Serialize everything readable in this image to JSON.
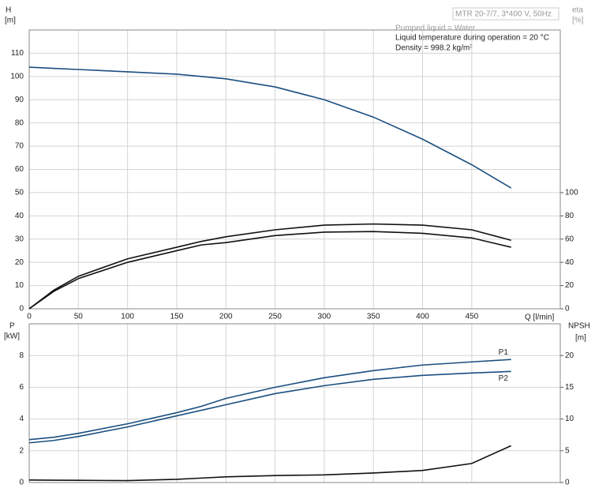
{
  "chart_data": [
    {
      "type": "line",
      "title": "MTR 20-7/7, 3*400 V, 50Hz",
      "annotations": [
        "Pumped liquid = Water",
        "Liquid temperature during operation = 20 °C",
        "Density = 998.2 kg/m³"
      ],
      "y_label": "H",
      "y_unit": "[m]",
      "y2_label": "eta",
      "y2_unit": "[%]",
      "x_label": "Q [l/min]",
      "x": [
        0,
        25,
        50,
        100,
        150,
        175,
        200,
        250,
        300,
        350,
        400,
        450,
        490
      ],
      "xlim": [
        0,
        540
      ],
      "xticks": [
        0,
        50,
        100,
        150,
        200,
        250,
        300,
        350,
        400,
        450
      ],
      "ylim": [
        0,
        120
      ],
      "yticks": [
        0,
        10,
        20,
        30,
        40,
        50,
        60,
        70,
        80,
        90,
        100,
        110
      ],
      "y2lim": [
        0,
        240
      ],
      "y2ticks": [
        0,
        20,
        40,
        60,
        80,
        100
      ],
      "grid": true,
      "series": [
        {
          "color": "#1b4f80",
          "values": [
            104,
            103.5,
            103,
            102,
            101,
            100,
            99,
            95.5,
            90,
            82.5,
            73,
            62,
            52
          ]
        },
        {
          "color": "#111111",
          "axis": "y2",
          "values": [
            0,
            16,
            28,
            43,
            53,
            58,
            62,
            68,
            72,
            73,
            72,
            68,
            59
          ]
        },
        {
          "color": "#111111",
          "axis": "y2",
          "values": [
            0,
            15,
            26,
            40,
            50,
            55,
            57,
            63,
            66,
            66.5,
            65,
            61,
            53
          ]
        }
      ]
    },
    {
      "type": "line",
      "y_label": "P",
      "y_unit": "[kW]",
      "y2_label": "NPSH",
      "y2_unit": "[m]",
      "x": [
        0,
        25,
        50,
        100,
        150,
        175,
        200,
        250,
        300,
        350,
        400,
        450,
        490
      ],
      "xlim": [
        0,
        540
      ],
      "ylim": [
        0,
        10
      ],
      "yticks": [
        0,
        2,
        4,
        6,
        8
      ],
      "y2lim": [
        0,
        25
      ],
      "y2ticks": [
        0,
        5,
        10,
        15,
        20
      ],
      "grid": true,
      "series": [
        {
          "name": "P1",
          "color": "#1b4f80",
          "values": [
            2.7,
            2.85,
            3.1,
            3.7,
            4.4,
            4.8,
            5.3,
            6.0,
            6.6,
            7.05,
            7.4,
            7.6,
            7.75
          ]
        },
        {
          "name": "P2",
          "color": "#1b4f80",
          "values": [
            2.5,
            2.65,
            2.9,
            3.5,
            4.2,
            4.55,
            4.9,
            5.6,
            6.1,
            6.5,
            6.75,
            6.9,
            7.0
          ]
        },
        {
          "color": "#111111",
          "axis": "y2",
          "values": [
            0.4,
            0.37,
            0.35,
            0.3,
            0.5,
            0.7,
            0.9,
            1.1,
            1.2,
            1.5,
            1.9,
            3.0,
            5.8
          ]
        }
      ]
    }
  ]
}
